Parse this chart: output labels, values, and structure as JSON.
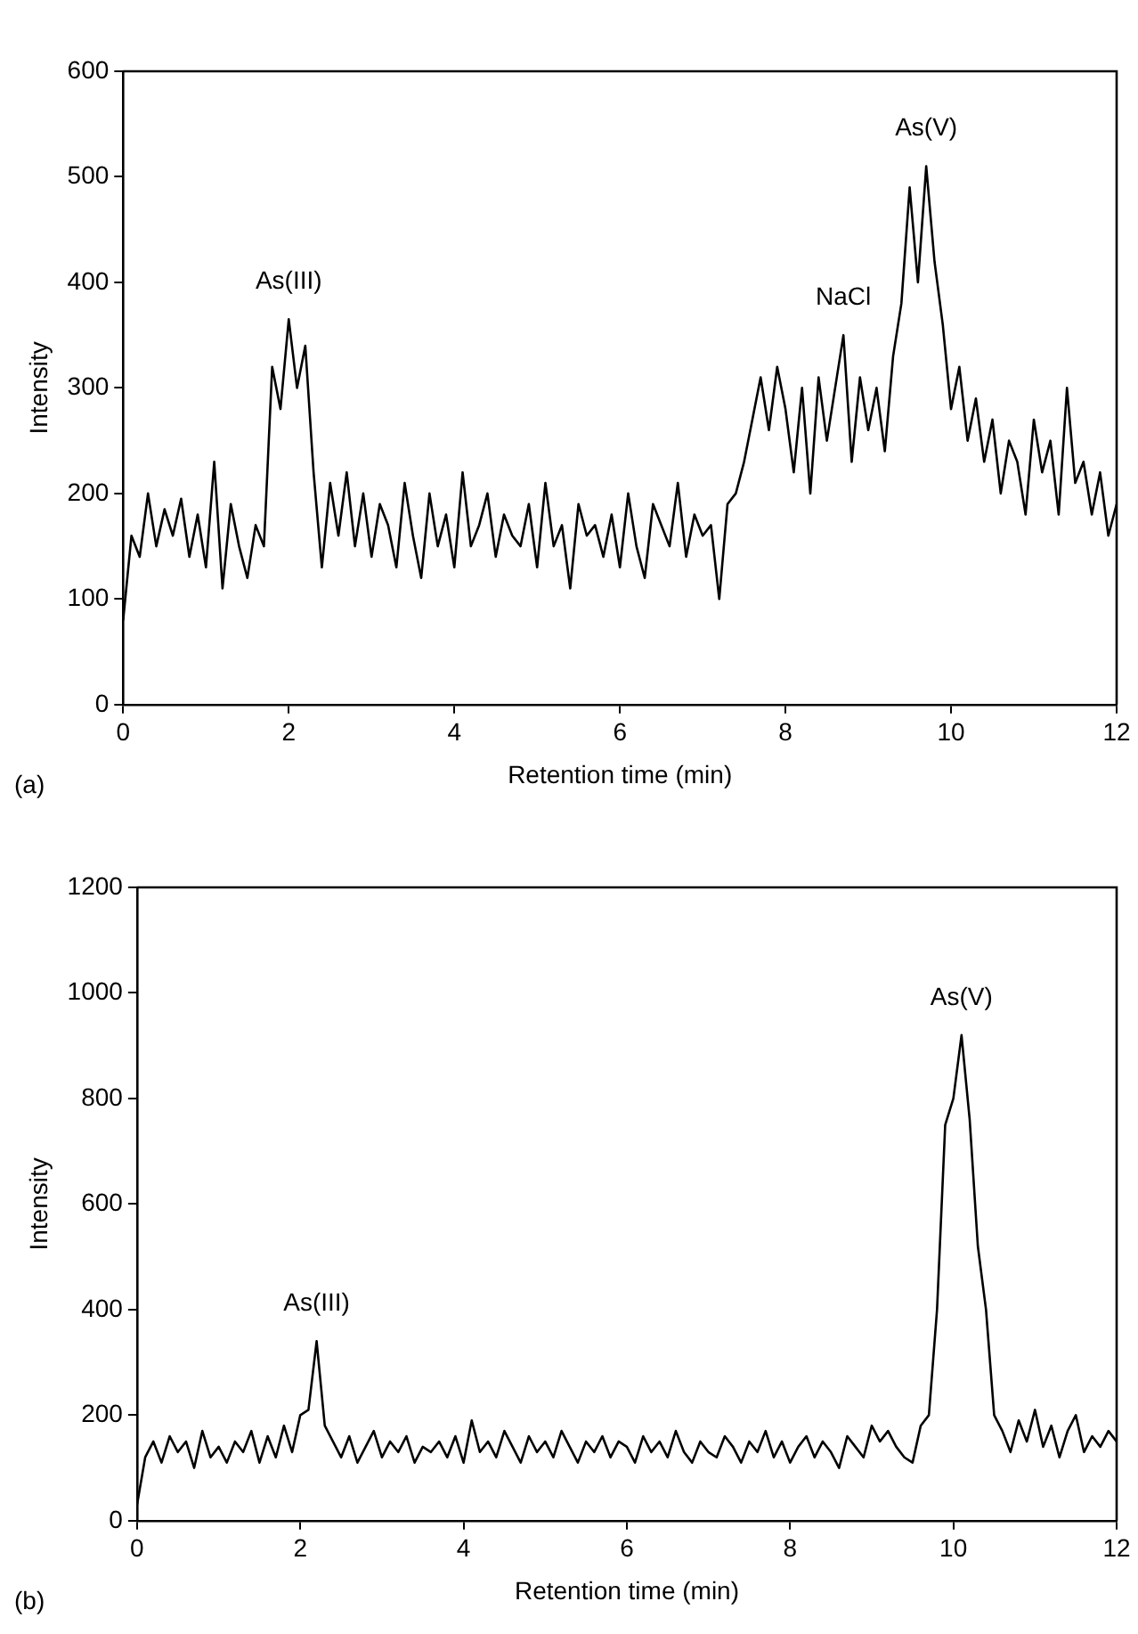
{
  "chart_data": [
    {
      "type": "line",
      "xlabel": "Retention time (min)",
      "ylabel": "Intensity",
      "xlim": [
        0,
        12
      ],
      "xticks": [
        0,
        2,
        4,
        6,
        8,
        10,
        12
      ],
      "ylim": [
        0,
        600
      ],
      "yticks": [
        0,
        100,
        200,
        300,
        400,
        500,
        600
      ],
      "grid": false,
      "legend": false,
      "marker": "none",
      "line_style": "solid",
      "annotations": [
        {
          "text": "As(III)",
          "x": 2.0,
          "y": 365
        },
        {
          "text": "NaCl",
          "x": 8.7,
          "y": 350
        },
        {
          "text": "As(V)",
          "x": 9.7,
          "y": 510
        },
        "(a)"
      ],
      "series": [
        {
          "color": "#000000",
          "x": [
            0,
            0.1,
            0.2,
            0.3,
            0.4,
            0.5,
            0.6,
            0.7,
            0.8,
            0.9,
            1.0,
            1.1,
            1.2,
            1.3,
            1.4,
            1.5,
            1.6,
            1.7,
            1.8,
            1.9,
            2.0,
            2.1,
            2.2,
            2.3,
            2.4,
            2.5,
            2.6,
            2.7,
            2.8,
            2.9,
            3.0,
            3.1,
            3.2,
            3.3,
            3.4,
            3.5,
            3.6,
            3.7,
            3.8,
            3.9,
            4.0,
            4.1,
            4.2,
            4.3,
            4.4,
            4.5,
            4.6,
            4.7,
            4.8,
            4.9,
            5.0,
            5.1,
            5.2,
            5.3,
            5.4,
            5.5,
            5.6,
            5.7,
            5.8,
            5.9,
            6.0,
            6.1,
            6.2,
            6.3,
            6.4,
            6.5,
            6.6,
            6.7,
            6.8,
            6.9,
            7.0,
            7.1,
            7.2,
            7.3,
            7.4,
            7.5,
            7.6,
            7.7,
            7.8,
            7.9,
            8.0,
            8.1,
            8.2,
            8.3,
            8.4,
            8.5,
            8.6,
            8.7,
            8.8,
            8.9,
            9.0,
            9.1,
            9.2,
            9.3,
            9.4,
            9.5,
            9.6,
            9.7,
            9.8,
            9.9,
            10.0,
            10.1,
            10.2,
            10.3,
            10.4,
            10.5,
            10.6,
            10.7,
            10.8,
            10.9,
            11.0,
            11.1,
            11.2,
            11.3,
            11.4,
            11.5,
            11.6,
            11.7,
            11.8,
            11.9,
            12.0
          ],
          "values": [
            80,
            160,
            140,
            200,
            150,
            185,
            160,
            195,
            140,
            180,
            130,
            230,
            110,
            190,
            150,
            120,
            170,
            150,
            320,
            280,
            365,
            300,
            340,
            220,
            130,
            210,
            160,
            220,
            150,
            200,
            140,
            190,
            170,
            130,
            210,
            160,
            120,
            200,
            150,
            180,
            130,
            220,
            150,
            170,
            200,
            140,
            180,
            160,
            150,
            190,
            130,
            210,
            150,
            170,
            110,
            190,
            160,
            170,
            140,
            180,
            130,
            200,
            150,
            120,
            190,
            170,
            150,
            210,
            140,
            180,
            160,
            170,
            100,
            190,
            200,
            230,
            270,
            310,
            260,
            320,
            280,
            220,
            300,
            200,
            310,
            250,
            300,
            350,
            230,
            310,
            260,
            300,
            240,
            330,
            380,
            490,
            400,
            510,
            420,
            360,
            280,
            320,
            250,
            290,
            230,
            270,
            200,
            250,
            230,
            180,
            270,
            220,
            250,
            180,
            300,
            210,
            230,
            180,
            220,
            160,
            190
          ]
        }
      ]
    },
    {
      "type": "line",
      "xlabel": "Retention time (min)",
      "ylabel": "Intensity",
      "xlim": [
        0,
        12
      ],
      "xticks": [
        0,
        2,
        4,
        6,
        8,
        10,
        12
      ],
      "ylim": [
        0,
        1200
      ],
      "yticks": [
        0,
        200,
        400,
        600,
        800,
        1000,
        1200
      ],
      "grid": false,
      "legend": false,
      "marker": "none",
      "line_style": "solid",
      "annotations": [
        {
          "text": "As(III)",
          "x": 2.2,
          "y": 340
        },
        {
          "text": "As(V)",
          "x": 10.1,
          "y": 920
        },
        "(b)"
      ],
      "series": [
        {
          "color": "#000000",
          "x": [
            0,
            0.1,
            0.2,
            0.3,
            0.4,
            0.5,
            0.6,
            0.7,
            0.8,
            0.9,
            1.0,
            1.1,
            1.2,
            1.3,
            1.4,
            1.5,
            1.6,
            1.7,
            1.8,
            1.9,
            2.0,
            2.1,
            2.2,
            2.3,
            2.4,
            2.5,
            2.6,
            2.7,
            2.8,
            2.9,
            3.0,
            3.1,
            3.2,
            3.3,
            3.4,
            3.5,
            3.6,
            3.7,
            3.8,
            3.9,
            4.0,
            4.1,
            4.2,
            4.3,
            4.4,
            4.5,
            4.6,
            4.7,
            4.8,
            4.9,
            5.0,
            5.1,
            5.2,
            5.3,
            5.4,
            5.5,
            5.6,
            5.7,
            5.8,
            5.9,
            6.0,
            6.1,
            6.2,
            6.3,
            6.4,
            6.5,
            6.6,
            6.7,
            6.8,
            6.9,
            7.0,
            7.1,
            7.2,
            7.3,
            7.4,
            7.5,
            7.6,
            7.7,
            7.8,
            7.9,
            8.0,
            8.1,
            8.2,
            8.3,
            8.4,
            8.5,
            8.6,
            8.7,
            8.8,
            8.9,
            9.0,
            9.1,
            9.2,
            9.3,
            9.4,
            9.5,
            9.6,
            9.7,
            9.8,
            9.9,
            10.0,
            10.1,
            10.2,
            10.3,
            10.4,
            10.5,
            10.6,
            10.7,
            10.8,
            10.9,
            11.0,
            11.1,
            11.2,
            11.3,
            11.4,
            11.5,
            11.6,
            11.7,
            11.8,
            11.9,
            12.0
          ],
          "values": [
            30,
            120,
            150,
            110,
            160,
            130,
            150,
            100,
            170,
            120,
            140,
            110,
            150,
            130,
            170,
            110,
            160,
            120,
            180,
            130,
            200,
            210,
            340,
            180,
            150,
            120,
            160,
            110,
            140,
            170,
            120,
            150,
            130,
            160,
            110,
            140,
            130,
            150,
            120,
            160,
            110,
            190,
            130,
            150,
            120,
            170,
            140,
            110,
            160,
            130,
            150,
            120,
            170,
            140,
            110,
            150,
            130,
            160,
            120,
            150,
            140,
            110,
            160,
            130,
            150,
            120,
            170,
            130,
            110,
            150,
            130,
            120,
            160,
            140,
            110,
            150,
            130,
            170,
            120,
            150,
            110,
            140,
            160,
            120,
            150,
            130,
            100,
            160,
            140,
            120,
            180,
            150,
            170,
            140,
            120,
            110,
            180,
            200,
            400,
            750,
            800,
            920,
            760,
            520,
            400,
            200,
            170,
            130,
            190,
            150,
            210,
            140,
            180,
            120,
            170,
            200,
            130,
            160,
            140,
            170,
            150
          ]
        }
      ]
    }
  ]
}
